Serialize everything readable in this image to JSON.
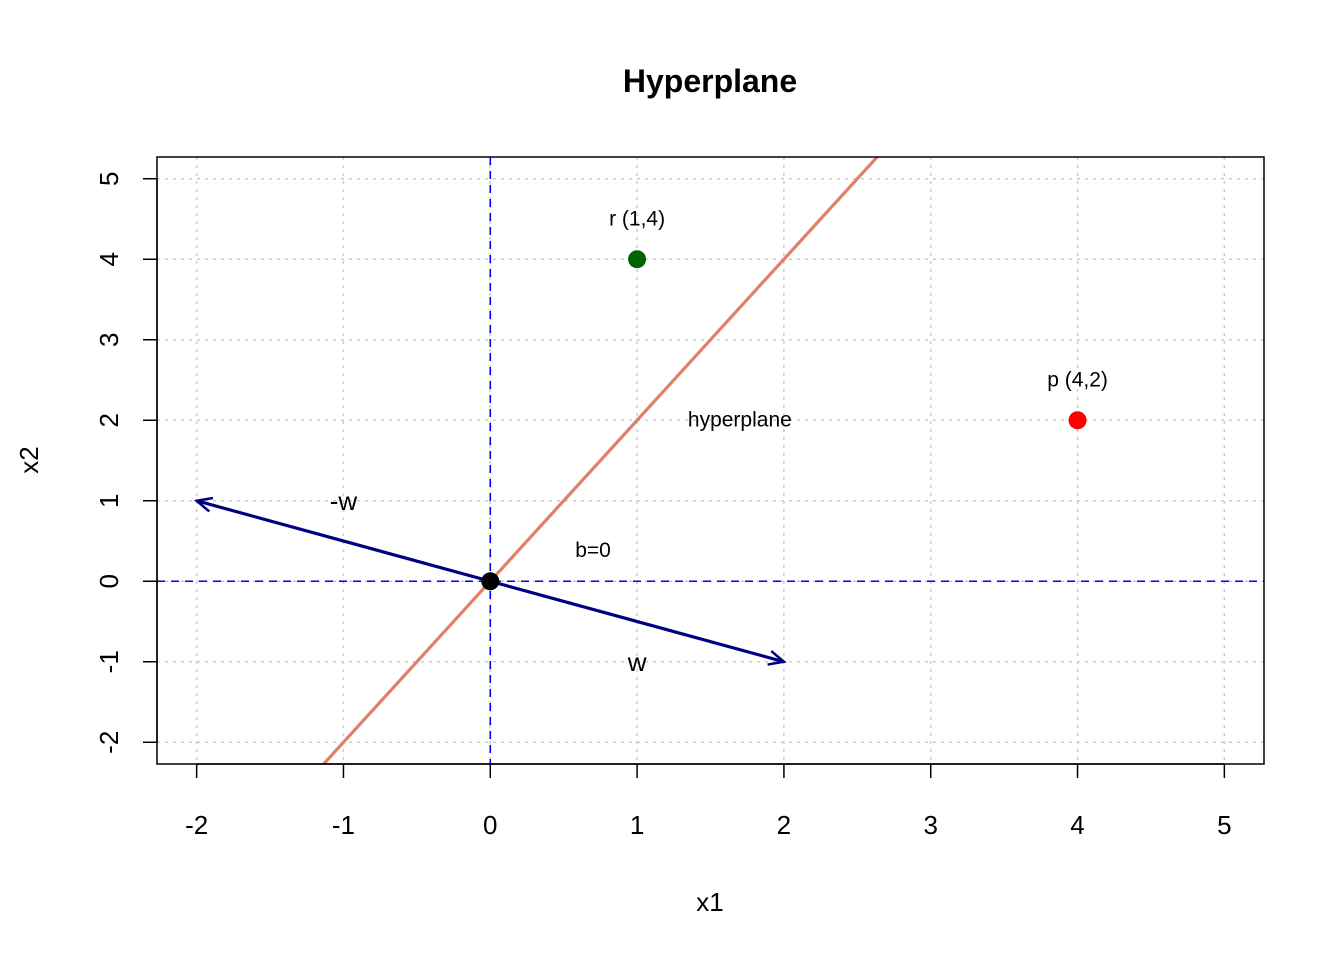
{
  "chart_data": {
    "type": "scatter",
    "title": "Hyperplane",
    "xlabel": "x1",
    "ylabel": "x2",
    "xlim": [
      -2.27,
      5.27
    ],
    "ylim": [
      -2.27,
      5.27
    ],
    "x_ticks": [
      -2,
      -1,
      0,
      1,
      2,
      3,
      4,
      5
    ],
    "y_ticks": [
      -2,
      -1,
      0,
      1,
      2,
      3,
      4,
      5
    ],
    "grid": true,
    "reference_lines": {
      "x": 0,
      "y": 0,
      "color": "#0000FF",
      "style": "dashed"
    },
    "hyperplane": {
      "slope": 2,
      "intercept": 0,
      "color": "#E08068",
      "label": "hyperplane",
      "label_at": [
        1.7,
        2
      ]
    },
    "vectors": [
      {
        "name": "w",
        "from": [
          0,
          0
        ],
        "to": [
          2,
          -1
        ],
        "color": "#000080",
        "label": "w",
        "label_at": [
          1,
          -1
        ]
      },
      {
        "name": "-w",
        "from": [
          0,
          0
        ],
        "to": [
          -2,
          1
        ],
        "color": "#000080",
        "label": "-w",
        "label_at": [
          -1,
          1
        ]
      }
    ],
    "points": [
      {
        "x": 1,
        "y": 4,
        "color": "#006400",
        "label": "r (1,4)",
        "label_at": [
          1,
          4.5
        ]
      },
      {
        "x": 4,
        "y": 2,
        "color": "#FF0000",
        "label": "p (4,2)",
        "label_at": [
          4,
          2.5
        ]
      },
      {
        "x": 0,
        "y": 0,
        "color": "#000000",
        "label": "",
        "label_at": null
      }
    ],
    "annotations": [
      {
        "text": "b=0",
        "at": [
          0.7,
          0.38
        ]
      }
    ]
  }
}
